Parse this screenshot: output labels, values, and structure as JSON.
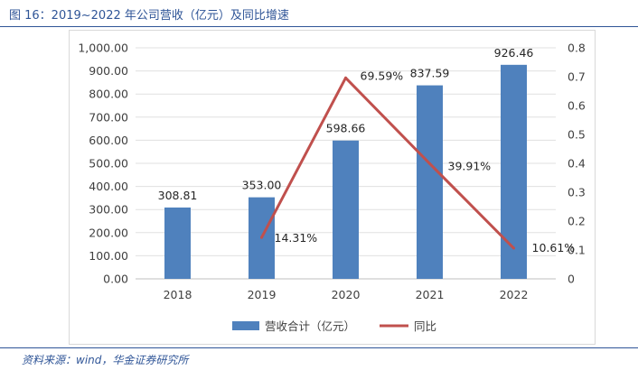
{
  "figure": {
    "title": "图 16：2019~2022 年公司营收（亿元）及同比增速",
    "source": "资料来源：wind，华金证券研究所"
  },
  "colors": {
    "accent": "#2f5597",
    "bar": "#4f81bd",
    "line": "#c0504d",
    "axis_text": "#404040"
  },
  "chart_data": {
    "type": "bar",
    "title": "",
    "categories": [
      "2018",
      "2019",
      "2020",
      "2021",
      "2022"
    ],
    "series": [
      {
        "name": "营收合计（亿元）",
        "kind": "bar",
        "axis": "left",
        "values": [
          308.81,
          353.0,
          598.66,
          837.59,
          926.46
        ],
        "labels": [
          "308.81",
          "353.00",
          "598.66",
          "837.59",
          "926.46"
        ]
      },
      {
        "name": "同比",
        "kind": "line",
        "axis": "right",
        "values": [
          null,
          0.1431,
          0.6959,
          0.3991,
          0.1061
        ],
        "labels": [
          "",
          "14.31%",
          "69.59%",
          "39.91%",
          "10.61%"
        ]
      }
    ],
    "ylim_left": [
      0,
      1000
    ],
    "yticks_left": [
      "0.00",
      "100.00",
      "200.00",
      "300.00",
      "400.00",
      "500.00",
      "600.00",
      "700.00",
      "800.00",
      "900.00",
      "1,000.00"
    ],
    "ylim_right": [
      0,
      0.8
    ],
    "yticks_right": [
      "0",
      "0.1",
      "0.2",
      "0.3",
      "0.4",
      "0.5",
      "0.6",
      "0.7",
      "0.8"
    ],
    "grid": true,
    "legend": "bottom"
  }
}
